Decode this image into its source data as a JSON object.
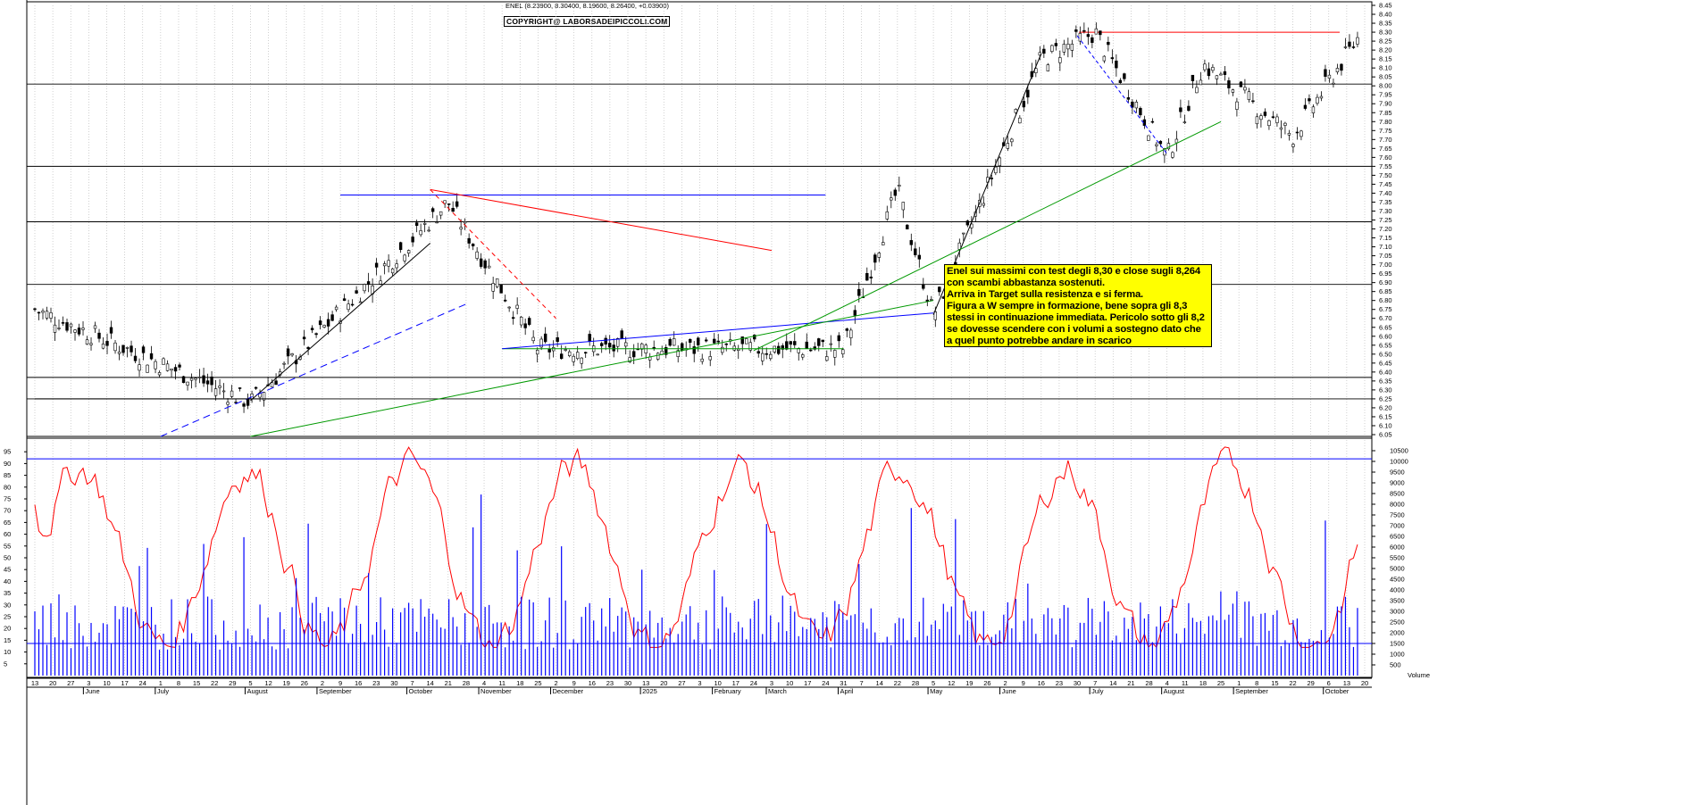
{
  "header": {
    "ticker_line": "ENEL (8.23900, 8.30400, 8.19600, 8.26400, +0.03900)",
    "copyright": "COPYRIGHT@ LABORSADEIPICCOLI.COM"
  },
  "annotation": {
    "lines": [
      "Enel sui massimi con test degli 8,30 e close sugli 8,264",
      "con scambi abbastanza sostenuti.",
      "Arriva in Target sulla resistenza e si ferma.",
      "Figura a W sempre in formazione, bene sopra gli 8,3",
      "stessi in continuazione immediata. Pericolo sotto gli 8,2",
      "se dovesse scendere con i volumi a sostegno dato che",
      "a quel punto potrebbe  andare in scarico"
    ]
  },
  "colors": {
    "candle": "#000000",
    "grid": "#bdbdbd",
    "oscillator": "#ff0000",
    "volume": "#0000ff",
    "trend_red": "#ff0000",
    "trend_blue": "#0000ff",
    "trend_green": "#009900",
    "annotation_bg": "#ffff00"
  },
  "chart_data": {
    "type": "candlestick",
    "price_axis": {
      "min": 6.05,
      "max": 8.45,
      "step": 0.05
    },
    "osc_axis": {
      "min": 5,
      "max": 95,
      "step": 5
    },
    "volume_axis": {
      "min": 500,
      "max": 10500,
      "step": 500,
      "label": "Volume"
    },
    "x_ticks": [
      "13",
      "20",
      "27",
      "3",
      "10",
      "17",
      "24",
      "1",
      "8",
      "15",
      "22",
      "29",
      "5",
      "12",
      "19",
      "26",
      "2",
      "9",
      "16",
      "23",
      "30",
      "7",
      "14",
      "21",
      "28",
      "4",
      "11",
      "18",
      "25",
      "2",
      "9",
      "16",
      "23",
      "30",
      "13",
      "20",
      "27",
      "3",
      "10",
      "17",
      "24",
      "3",
      "10",
      "17",
      "24",
      "31",
      "7",
      "14",
      "22",
      "28",
      "5",
      "12",
      "19",
      "26",
      "2",
      "9",
      "16",
      "23",
      "30",
      "7",
      "14",
      "21",
      "28",
      "4",
      "11",
      "18",
      "25",
      "1",
      "8",
      "15",
      "22",
      "29",
      "6",
      "13",
      "20"
    ],
    "months": [
      "June",
      "July",
      "August",
      "September",
      "October",
      "November",
      "December",
      "2025",
      "February",
      "March",
      "April",
      "May",
      "June",
      "July",
      "August",
      "September",
      "October"
    ],
    "horizontal_levels": [
      8.01,
      7.55,
      7.24,
      6.89,
      6.37,
      6.25,
      6.04
    ],
    "resistance_level": 8.3,
    "key_points": [
      {
        "date_label": "start",
        "close": 6.75
      },
      {
        "date_label": "August 5",
        "low": 6.23
      },
      {
        "date_label": "October 14",
        "high": 7.35
      },
      {
        "date_label": "November 11",
        "low": 6.53
      },
      {
        "date_label": "March 7",
        "low": 6.53
      },
      {
        "date_label": "March 24",
        "high": 7.42
      },
      {
        "date_label": "April 7",
        "low": 6.72
      },
      {
        "date_label": "May 14",
        "high": 8.15
      },
      {
        "date_label": "June 30",
        "high": 8.3
      },
      {
        "date_label": "July 28",
        "low": 7.6
      },
      {
        "date_label": "August 11",
        "high": 8.12
      },
      {
        "date_label": "September 15",
        "low": 7.72
      },
      {
        "date_label": "October 8",
        "close": 8.264
      }
    ]
  }
}
